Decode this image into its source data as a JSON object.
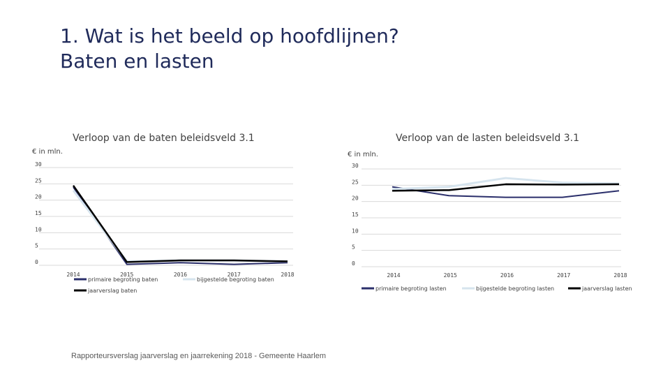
{
  "slide": {
    "title_line1": "1. Wat is het beeld op hoofdlijnen?",
    "title_line2": "Baten en lasten",
    "footer": "Rapporteursverslag jaarverslag en jaarrekening 2018 - Gemeente Haarlem"
  },
  "colors": {
    "primaire": "#2b2f6b",
    "bijgestelde": "#d6e4ee",
    "jaarverslag": "#000000",
    "grid": "#d9d9d9"
  },
  "chart_data": [
    {
      "type": "line",
      "title": "Verloop van de baten beleidsveld 3.1",
      "ylabel": "€ in mln.",
      "categories": [
        "2014",
        "2015",
        "2016",
        "2017",
        "2018"
      ],
      "ylim": [
        0,
        30
      ],
      "yticks": [
        "0",
        "5",
        "10",
        "15",
        "20",
        "25",
        "30"
      ],
      "legend": "bottom",
      "series": [
        {
          "name": "primaire begroting baten",
          "values": [
            24,
            0.3,
            0.8,
            0.3,
            0.8
          ]
        },
        {
          "name": "bijgestelde begroting baten",
          "values": [
            23,
            1.2,
            1.5,
            1.5,
            1.2
          ]
        },
        {
          "name": "jaarverslag baten",
          "values": [
            24.5,
            1,
            1.5,
            1.5,
            1.2
          ]
        }
      ]
    },
    {
      "type": "line",
      "title": "Verloop van de lasten beleidsveld 3.1",
      "ylabel": "€ in mln.",
      "categories": [
        "2014",
        "2015",
        "2016",
        "2017",
        "2018"
      ],
      "ylim": [
        0,
        30
      ],
      "yticks": [
        "0",
        "5",
        "10",
        "15",
        "20",
        "25",
        "30"
      ],
      "legend": "bottom",
      "series": [
        {
          "name": "primaire begroting lasten",
          "values": [
            24.5,
            21.8,
            21.3,
            21.3,
            23.3
          ]
        },
        {
          "name": "bijgestelde begroting lasten",
          "values": [
            23.8,
            24.5,
            27.2,
            25.8,
            25.5
          ]
        },
        {
          "name": "jaarverslag lasten",
          "values": [
            23.3,
            23.5,
            25.3,
            25.2,
            25.3
          ]
        }
      ]
    }
  ]
}
